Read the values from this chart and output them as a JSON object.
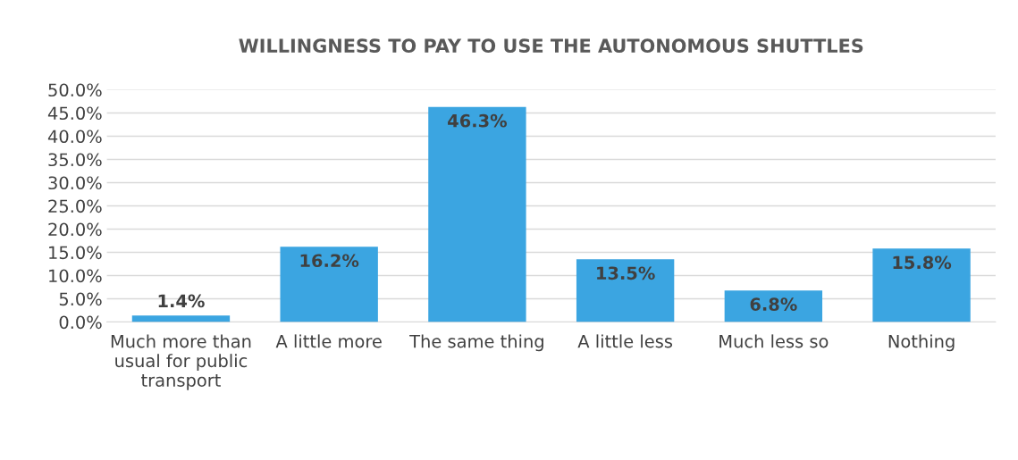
{
  "chart_data": {
    "type": "bar",
    "title": "WILLINGNESS TO PAY TO USE THE AUTONOMOUS SHUTTLES",
    "categories": [
      "Much more than usual for public transport",
      "A little more",
      "The same thing",
      "A little less",
      "Much less so",
      "Nothing"
    ],
    "values": [
      1.4,
      16.2,
      46.3,
      13.5,
      6.8,
      15.8
    ],
    "value_labels": [
      "1.4%",
      "16.2%",
      "46.3%",
      "13.5%",
      "6.8%",
      "15.8%"
    ],
    "color": "#3ba5e1",
    "ylim": [
      0,
      50
    ],
    "yticks": [
      {
        "value": 0,
        "label": "0.0%"
      },
      {
        "value": 5,
        "label": "5.0%"
      },
      {
        "value": 10,
        "label": "10.0%"
      },
      {
        "value": 15,
        "label": "15.0%"
      },
      {
        "value": 20,
        "label": "20.0%"
      },
      {
        "value": 25,
        "label": "25.0%"
      },
      {
        "value": 30,
        "label": "30.0%"
      },
      {
        "value": 35,
        "label": "35.0%"
      },
      {
        "value": 40,
        "label": "40.0%"
      },
      {
        "value": 45,
        "label": "45.0%"
      },
      {
        "value": 50,
        "label": "50.0%"
      }
    ],
    "grid": "y",
    "legend": false
  }
}
